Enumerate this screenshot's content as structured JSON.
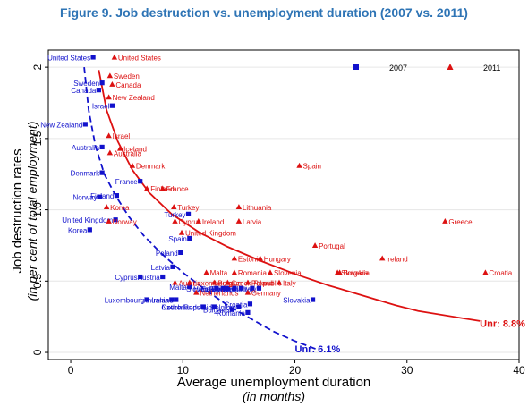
{
  "figure_title": "Figure 9. Job destruction vs. unemployment duration (2007 vs. 2011)",
  "chart_data": {
    "type": "scatter",
    "xlabel": "Average unemployment duration",
    "xlabel_sub": "(in months)",
    "ylabel": "Job destruction rates",
    "ylabel_sub": "(in per cent of total employment)",
    "xlim": [
      -2,
      40
    ],
    "ylim": [
      -0.05,
      2.12
    ],
    "xticks": [
      0,
      10,
      20,
      30,
      40
    ],
    "yticks": [
      0,
      0.5,
      1.0,
      1.5,
      2
    ],
    "ytick_labels": [
      "0",
      "0.5",
      "1.0",
      "1.5",
      "2"
    ],
    "grid": true,
    "legend_position": "top-right",
    "series": [
      {
        "name": "2007",
        "color": "#1111cc",
        "marker": "square",
        "points": [
          {
            "label": "United States",
            "x": 2.0,
            "y": 2.07
          },
          {
            "label": "Sweden",
            "x": 2.8,
            "y": 1.89
          },
          {
            "label": "Canada",
            "x": 2.5,
            "y": 1.84
          },
          {
            "label": "Israel",
            "x": 3.7,
            "y": 1.73
          },
          {
            "label": "New Zealand",
            "x": 1.3,
            "y": 1.6
          },
          {
            "label": "Australia",
            "x": 2.8,
            "y": 1.44
          },
          {
            "label": "Denmark",
            "x": 2.8,
            "y": 1.26
          },
          {
            "label": "France",
            "x": 6.2,
            "y": 1.2
          },
          {
            "label": "Finland",
            "x": 4.1,
            "y": 1.1
          },
          {
            "label": "Norway",
            "x": 2.6,
            "y": 1.09
          },
          {
            "label": "United Kingdom",
            "x": 4.0,
            "y": 0.93
          },
          {
            "label": "Turkey",
            "x": 10.5,
            "y": 0.97
          },
          {
            "label": "Korea",
            "x": 1.7,
            "y": 0.86
          },
          {
            "label": "Spain",
            "x": 10.6,
            "y": 0.8
          },
          {
            "label": "Poland",
            "x": 9.8,
            "y": 0.7
          },
          {
            "label": "Latvia",
            "x": 9.1,
            "y": 0.6
          },
          {
            "label": "Cyprus",
            "x": 6.2,
            "y": 0.53
          },
          {
            "label": "Austria",
            "x": 8.2,
            "y": 0.53
          },
          {
            "label": "Malta",
            "x": 10.6,
            "y": 0.46
          },
          {
            "label": "Luxembourg",
            "x": 6.8,
            "y": 0.37
          },
          {
            "label": "Lithuania",
            "x": 9.0,
            "y": 0.37
          },
          {
            "label": "Ireland",
            "x": 9.4,
            "y": 0.37
          },
          {
            "label": "Netherlands",
            "x": 11.8,
            "y": 0.32
          },
          {
            "label": "Czech Republic",
            "x": 12.8,
            "y": 0.32
          },
          {
            "label": "Belgium",
            "x": 15.0,
            "y": 0.32
          },
          {
            "label": "Bulgaria",
            "x": 14.4,
            "y": 0.3
          },
          {
            "label": "Croatia",
            "x": 16.0,
            "y": 0.34
          },
          {
            "label": "Romania",
            "x": 15.8,
            "y": 0.28
          },
          {
            "label": "Slovakia",
            "x": 21.6,
            "y": 0.37
          },
          {
            "label": "Hungary",
            "x": 13.6,
            "y": 0.45
          },
          {
            "label": "Greece",
            "x": 14.6,
            "y": 0.45
          },
          {
            "label": "Estonia",
            "x": 14.0,
            "y": 0.45
          },
          {
            "label": "Slovenia",
            "x": 13.0,
            "y": 0.45
          },
          {
            "label": "Germany",
            "x": 16.2,
            "y": 0.45
          },
          {
            "label": "Portugal",
            "x": 15.2,
            "y": 0.45
          },
          {
            "label": "Italy",
            "x": 16.8,
            "y": 0.45
          }
        ]
      },
      {
        "name": "2011",
        "color": "#dd1111",
        "marker": "triangle",
        "points": [
          {
            "label": "United States",
            "x": 3.9,
            "y": 2.07
          },
          {
            "label": "Sweden",
            "x": 3.5,
            "y": 1.94
          },
          {
            "label": "Canada",
            "x": 3.7,
            "y": 1.88
          },
          {
            "label": "New Zealand",
            "x": 3.4,
            "y": 1.79
          },
          {
            "label": "Israel",
            "x": 3.4,
            "y": 1.52
          },
          {
            "label": "Iceland",
            "x": 4.4,
            "y": 1.43
          },
          {
            "label": "Australia",
            "x": 3.5,
            "y": 1.4
          },
          {
            "label": "Denmark",
            "x": 5.5,
            "y": 1.31
          },
          {
            "label": "Spain",
            "x": 20.4,
            "y": 1.31
          },
          {
            "label": "Finland",
            "x": 6.8,
            "y": 1.15
          },
          {
            "label": "France",
            "x": 8.2,
            "y": 1.15
          },
          {
            "label": "Korea",
            "x": 3.2,
            "y": 1.02
          },
          {
            "label": "Turkey",
            "x": 9.2,
            "y": 1.02
          },
          {
            "label": "Lithuania",
            "x": 15.0,
            "y": 1.02
          },
          {
            "label": "Norway",
            "x": 3.4,
            "y": 0.92
          },
          {
            "label": "Cyprus",
            "x": 9.3,
            "y": 0.92
          },
          {
            "label": "Ireland",
            "x": 11.4,
            "y": 0.92
          },
          {
            "label": "Latvia",
            "x": 15.0,
            "y": 0.92
          },
          {
            "label": "Greece",
            "x": 33.4,
            "y": 0.92
          },
          {
            "label": "United Kingdom",
            "x": 9.9,
            "y": 0.84
          },
          {
            "label": "Portugal",
            "x": 21.8,
            "y": 0.75
          },
          {
            "label": "Estonia",
            "x": 14.6,
            "y": 0.66
          },
          {
            "label": "Hungary",
            "x": 16.9,
            "y": 0.66
          },
          {
            "label": "Ireland",
            "x": 27.8,
            "y": 0.66
          },
          {
            "label": "Malta",
            "x": 12.1,
            "y": 0.56
          },
          {
            "label": "Romania",
            "x": 14.6,
            "y": 0.56
          },
          {
            "label": "Slovenia",
            "x": 17.8,
            "y": 0.56
          },
          {
            "label": "Slovakia",
            "x": 23.8,
            "y": 0.56
          },
          {
            "label": "Bulgaria",
            "x": 24.0,
            "y": 0.56
          },
          {
            "label": "Croatia",
            "x": 37.0,
            "y": 0.56
          },
          {
            "label": "Austria",
            "x": 9.3,
            "y": 0.49
          },
          {
            "label": "Luxembourg",
            "x": 10.6,
            "y": 0.49
          },
          {
            "label": "Belgium",
            "x": 12.8,
            "y": 0.49
          },
          {
            "label": "Czech Republic",
            "x": 14.0,
            "y": 0.49
          },
          {
            "label": "Poland",
            "x": 15.8,
            "y": 0.49
          },
          {
            "label": "Italy",
            "x": 18.6,
            "y": 0.49
          },
          {
            "label": "Netherlands",
            "x": 11.2,
            "y": 0.42
          },
          {
            "label": "Germany",
            "x": 15.8,
            "y": 0.42
          }
        ]
      }
    ],
    "fit_lines": [
      {
        "name": "Unr: 6.1%",
        "color": "#1111cc",
        "style": "dashed",
        "points": [
          [
            1.2,
            2.0
          ],
          [
            1.6,
            1.7
          ],
          [
            2.2,
            1.45
          ],
          [
            3.0,
            1.25
          ],
          [
            4.0,
            1.1
          ],
          [
            5.2,
            0.95
          ],
          [
            6.5,
            0.82
          ],
          [
            8.0,
            0.7
          ],
          [
            10.0,
            0.56
          ],
          [
            12.0,
            0.44
          ],
          [
            14.0,
            0.33
          ],
          [
            16.0,
            0.24
          ],
          [
            18.0,
            0.15
          ],
          [
            20.0,
            0.08
          ],
          [
            22.0,
            0.02
          ]
        ]
      },
      {
        "name": "Unr: 8.8%",
        "color": "#dd1111",
        "style": "solid",
        "points": [
          [
            2.5,
            1.98
          ],
          [
            3.2,
            1.7
          ],
          [
            4.2,
            1.48
          ],
          [
            5.5,
            1.28
          ],
          [
            7.0,
            1.12
          ],
          [
            9.0,
            0.97
          ],
          [
            11.5,
            0.84
          ],
          [
            14.0,
            0.74
          ],
          [
            17.0,
            0.64
          ],
          [
            20.0,
            0.55
          ],
          [
            23.0,
            0.47
          ],
          [
            26.0,
            0.4
          ],
          [
            29.0,
            0.33
          ],
          [
            31.0,
            0.29
          ],
          [
            36.5,
            0.22
          ]
        ]
      }
    ],
    "annotations": [
      {
        "text": "Unr: 6.1%",
        "x": 20.0,
        "y": 0.0,
        "color": "#1111cc"
      },
      {
        "text": "Unr: 8.8%",
        "x": 36.5,
        "y": 0.18,
        "color": "#dd1111"
      }
    ]
  }
}
